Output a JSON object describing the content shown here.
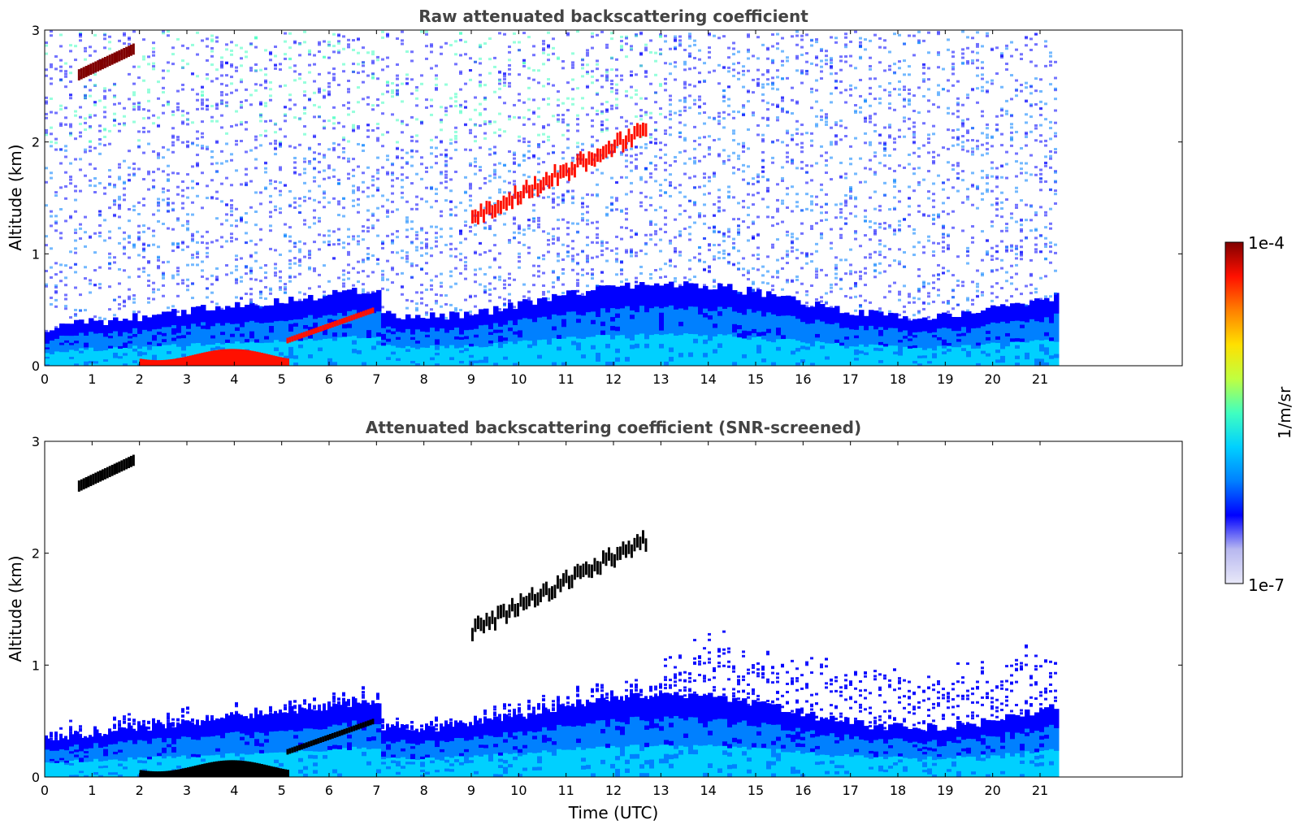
{
  "chart_data": [
    {
      "type": "heatmap",
      "title": "Raw attenuated backscattering coefficient",
      "xlabel": "",
      "ylabel": "Altitude (km)",
      "xlim": [
        0,
        24
      ],
      "ylim": [
        0,
        3
      ],
      "data_xmax": 21.3,
      "xticks": [
        "0",
        "1",
        "2",
        "3",
        "4",
        "5",
        "6",
        "7",
        "8",
        "9",
        "10",
        "11",
        "12",
        "13",
        "14",
        "15",
        "16",
        "17",
        "18",
        "19",
        "20",
        "21"
      ],
      "yticks": [
        "0",
        "1",
        "2",
        "3"
      ],
      "grid": false,
      "screened": false
    },
    {
      "type": "heatmap",
      "title": "Attenuated backscattering coefficient (SNR-screened)",
      "xlabel": "Time (UTC)",
      "ylabel": "Altitude (km)",
      "xlim": [
        0,
        24
      ],
      "ylim": [
        0,
        3
      ],
      "data_xmax": 21.3,
      "xticks": [
        "0",
        "1",
        "2",
        "3",
        "4",
        "5",
        "6",
        "7",
        "8",
        "9",
        "10",
        "11",
        "12",
        "13",
        "14",
        "15",
        "16",
        "17",
        "18",
        "19",
        "20",
        "21"
      ],
      "yticks": [
        "0",
        "1",
        "2",
        "3"
      ],
      "grid": false,
      "screened": true
    }
  ],
  "colorbar": {
    "label": "1/m/sr",
    "max_label": "1e-4",
    "min_label": "1e-7",
    "scale": "log",
    "colormap": "jet",
    "colors": [
      "#e8e8f8",
      "#b8b8f0",
      "#0000ff",
      "#0080ff",
      "#00d0ff",
      "#40ffc0",
      "#c0ff40",
      "#ffe000",
      "#ff8000",
      "#ff1000",
      "#800000"
    ]
  }
}
